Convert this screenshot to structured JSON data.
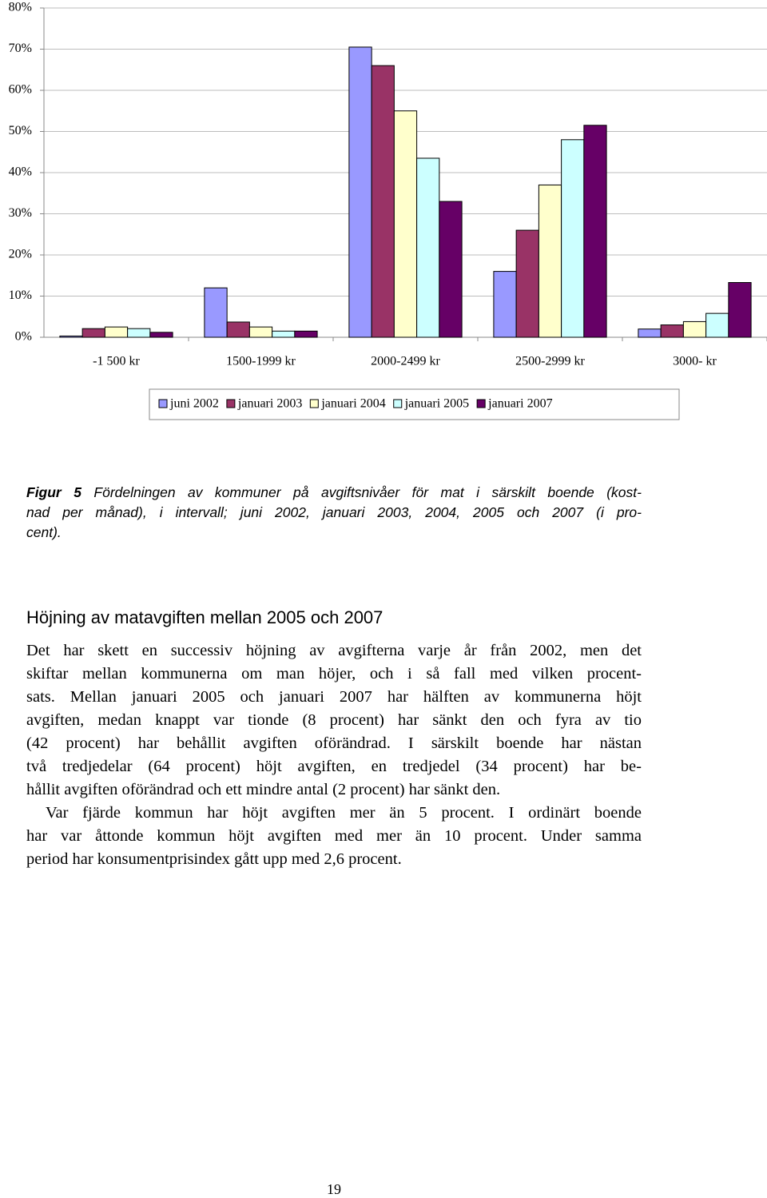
{
  "chart_data": {
    "type": "bar",
    "categories": [
      "-1 500 kr",
      "1500-1999 kr",
      "2000-2499 kr",
      "2500-2999 kr",
      "3000- kr"
    ],
    "series": [
      {
        "name": "juni 2002",
        "color": "#9999ff",
        "values": [
          0.3,
          12,
          70.5,
          16,
          2
        ]
      },
      {
        "name": "januari 2003",
        "color": "#993366",
        "values": [
          2.1,
          3.7,
          66,
          26,
          3
        ]
      },
      {
        "name": "januari 2004",
        "color": "#ffffcc",
        "values": [
          2.5,
          2.5,
          55,
          37,
          3.8
        ]
      },
      {
        "name": "januari 2005",
        "color": "#ccffff",
        "values": [
          2.1,
          1.5,
          43.5,
          48,
          5.8
        ]
      },
      {
        "name": "januari 2007",
        "color": "#660066",
        "values": [
          1.2,
          1.5,
          33,
          51.5,
          13.3
        ]
      }
    ],
    "ylim": [
      0,
      80
    ],
    "yticks": [
      {
        "value": 0,
        "label": "0%"
      },
      {
        "value": 10,
        "label": "10%"
      },
      {
        "value": 20,
        "label": "20%"
      },
      {
        "value": 30,
        "label": "30%"
      },
      {
        "value": 40,
        "label": "40%"
      },
      {
        "value": 50,
        "label": "50%"
      },
      {
        "value": 60,
        "label": "60%"
      },
      {
        "value": 70,
        "label": "70%"
      },
      {
        "value": 80,
        "label": "80%"
      }
    ],
    "grid": true,
    "legend": "bottom"
  },
  "caption": {
    "label": "Figur 5",
    "lines": [
      "Fördelningen av kommuner på avgiftsnivåer för mat i särskilt boende (kost-",
      "nad per månad), i intervall; juni 2002, januari 2003, 2004, 2005 och 2007 (i pro-",
      "cent)."
    ]
  },
  "heading": "Höjning av matavgiften mellan 2005 och 2007",
  "paragraphs": [
    [
      "Det har skett en successiv höjning av avgifterna varje år från 2002, men det",
      "skiftar mellan kommunerna om man höjer, och i så fall med vilken procent-",
      "sats. Mellan januari 2005 och januari 2007 har hälften av kommunerna höjt",
      "avgiften, medan knappt var tionde (8 procent) har sänkt den och fyra av tio",
      "(42 procent) har behållit avgiften oförändrad. I särskilt boende har nästan",
      "två tredjedelar (64 procent) höjt avgiften, en tredjedel (34 procent) har be-",
      "hållit avgiften oförändrad och ett mindre antal (2 procent) har sänkt den."
    ],
    [
      "Var fjärde kommun har höjt avgiften mer än 5 procent. I ordinärt boende",
      "har var åttonde kommun höjt avgiften med mer än 10 procent. Under samma",
      "period har konsumentprisindex gått upp med 2,6 procent."
    ]
  ],
  "page_number": "19"
}
